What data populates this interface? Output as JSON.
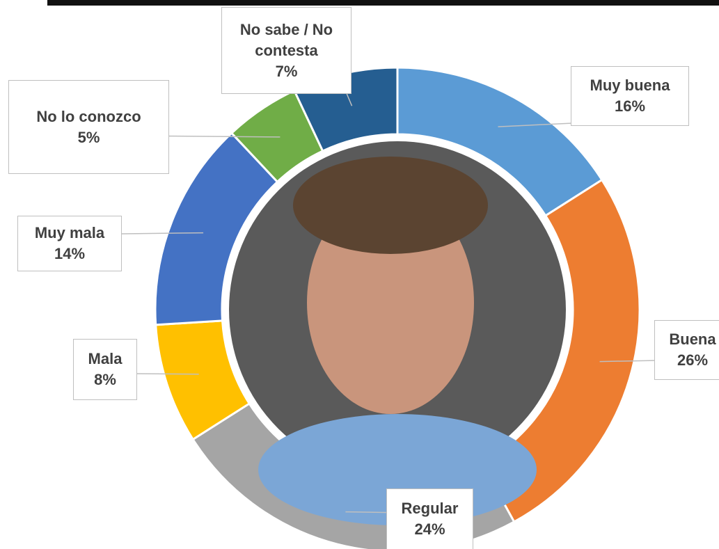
{
  "chart_data": {
    "type": "donut",
    "categories": [
      "Muy buena",
      "Buena",
      "Regular",
      "Mala",
      "Muy mala",
      "No lo conozco",
      "No sabe / No contesta"
    ],
    "values": [
      16,
      26,
      24,
      8,
      14,
      5,
      7
    ],
    "value_labels": [
      "16%",
      "26%",
      "24%",
      "8%",
      "14%",
      "5%",
      "7%"
    ],
    "colors": [
      "#5b9bd5",
      "#ed7d31",
      "#a5a5a5",
      "#ffc000",
      "#4472c4",
      "#70ad47",
      "#255e91"
    ]
  }
}
